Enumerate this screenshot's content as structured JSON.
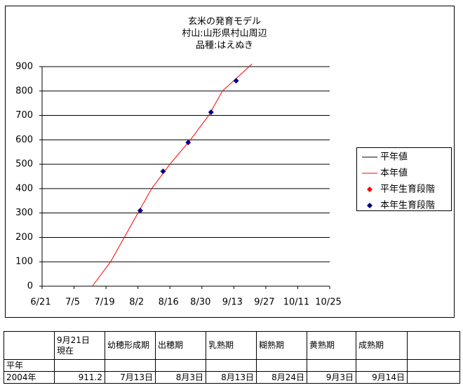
{
  "chart_data": {
    "type": "line",
    "title": [
      "玄米の発育モデル",
      "村山:山形県村山周辺",
      "品種:はえぬき"
    ],
    "xlim": [
      "6/21",
      "10/25"
    ],
    "xticks": [
      "6/21",
      "7/5",
      "7/19",
      "8/2",
      "8/16",
      "8/30",
      "9/13",
      "9/27",
      "10/11",
      "10/25"
    ],
    "ylim": [
      0,
      900
    ],
    "yticks": [
      0,
      100,
      200,
      300,
      400,
      500,
      600,
      700,
      800,
      900
    ],
    "grid": true,
    "legend": "right",
    "series": [
      {
        "name": "平年値",
        "color": "#000000",
        "kind": "line",
        "x": [],
        "values": []
      },
      {
        "name": "本年値",
        "color": "#ff0000",
        "kind": "line",
        "x": [
          "7/13",
          "7/21",
          "7/27",
          "8/2",
          "8/8",
          "8/16",
          "8/25",
          "9/2",
          "9/8",
          "9/21"
        ],
        "values": [
          0,
          100,
          200,
          300,
          400,
          500,
          600,
          700,
          800,
          911.2
        ]
      },
      {
        "name": "平年生育段階",
        "color": "#ff0000",
        "kind": "marker",
        "x": [],
        "values": []
      },
      {
        "name": "本年生育段階",
        "color": "#000080",
        "kind": "marker",
        "x": [
          "8/3",
          "8/13",
          "8/24",
          "9/3",
          "9/14"
        ],
        "values": [
          310,
          471,
          589,
          713,
          842
        ]
      }
    ]
  },
  "table": {
    "header": [
      "9月21日\n現在",
      "幼穂形成期",
      "出穂期",
      "乳熟期",
      "糊熟期",
      "黄熟期",
      "成熟期"
    ],
    "rows": [
      [
        "平年"
      ],
      [
        "2004年",
        "911.2",
        "7月13日",
        "8月3日",
        "8月13日",
        "8月24日",
        "9月3日",
        "9月14日"
      ]
    ]
  }
}
